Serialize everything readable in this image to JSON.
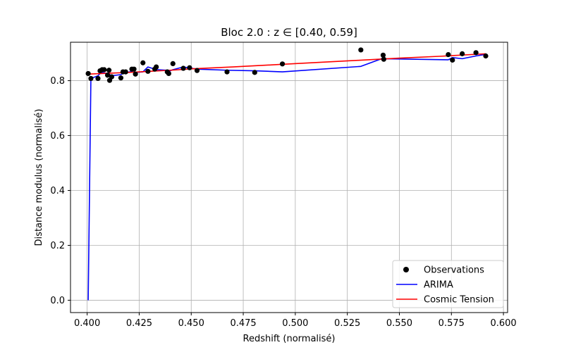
{
  "chart_data": {
    "type": "line",
    "title": "Bloc 2.0 : z ∈ [0.40, 0.59]",
    "xlabel": "Redshift (normalisé)",
    "ylabel": "Distance modulus (normalisé)",
    "xlim": [
      0.392,
      0.602
    ],
    "ylim": [
      -0.045,
      0.94
    ],
    "xticks": [
      0.4,
      0.425,
      0.45,
      0.475,
      0.5,
      0.525,
      0.55,
      0.575,
      0.6
    ],
    "xtick_labels": [
      "0.400",
      "0.425",
      "0.450",
      "0.475",
      "0.500",
      "0.525",
      "0.550",
      "0.575",
      "0.600"
    ],
    "yticks": [
      0.0,
      0.2,
      0.4,
      0.6,
      0.8
    ],
    "ytick_labels": [
      "0.0",
      "0.2",
      "0.4",
      "0.6",
      "0.8"
    ],
    "grid": true,
    "legend_position": "lower-right",
    "series": [
      {
        "name": "Observations",
        "kind": "scatter",
        "color": "#000000",
        "x": [
          0.4005,
          0.4018,
          0.4052,
          0.4062,
          0.4072,
          0.4082,
          0.4098,
          0.4105,
          0.4108,
          0.4118,
          0.4162,
          0.4172,
          0.4185,
          0.4215,
          0.4225,
          0.4232,
          0.4268,
          0.4292,
          0.4325,
          0.4332,
          0.4385,
          0.4392,
          0.4412,
          0.4462,
          0.4492,
          0.4528,
          0.4672,
          0.4805,
          0.4938,
          0.5315,
          0.5422,
          0.5425,
          0.5735,
          0.5755,
          0.5802,
          0.5868,
          0.5915
        ],
        "y": [
          0.826,
          0.808,
          0.808,
          0.836,
          0.84,
          0.84,
          0.82,
          0.838,
          0.801,
          0.814,
          0.81,
          0.832,
          0.832,
          0.842,
          0.842,
          0.824,
          0.865,
          0.834,
          0.842,
          0.85,
          0.832,
          0.826,
          0.862,
          0.845,
          0.847,
          0.837,
          0.832,
          0.83,
          0.861,
          0.912,
          0.893,
          0.878,
          0.895,
          0.875,
          0.898,
          0.902,
          0.89
        ]
      },
      {
        "name": "ARIMA",
        "kind": "line",
        "color": "#0000ff",
        "x": [
          0.4005,
          0.4018,
          0.4052,
          0.4062,
          0.4072,
          0.4082,
          0.4098,
          0.4105,
          0.4108,
          0.4118,
          0.4162,
          0.4172,
          0.4185,
          0.4215,
          0.4225,
          0.4232,
          0.4268,
          0.4292,
          0.4325,
          0.4332,
          0.4385,
          0.4392,
          0.4412,
          0.4462,
          0.4492,
          0.4528,
          0.4672,
          0.4805,
          0.4938,
          0.5315,
          0.5422,
          0.5425,
          0.5735,
          0.5755,
          0.5802,
          0.5868,
          0.5915
        ],
        "y": [
          0.0,
          0.808,
          0.818,
          0.826,
          0.83,
          0.828,
          0.826,
          0.83,
          0.822,
          0.818,
          0.822,
          0.826,
          0.828,
          0.834,
          0.836,
          0.83,
          0.832,
          0.85,
          0.842,
          0.84,
          0.838,
          0.834,
          0.84,
          0.85,
          0.846,
          0.842,
          0.838,
          0.836,
          0.832,
          0.852,
          0.882,
          0.88,
          0.876,
          0.884,
          0.88,
          0.89,
          0.896
        ]
      },
      {
        "name": "Cosmic Tension",
        "kind": "line",
        "color": "#ff0000",
        "x": [
          0.4005,
          0.41,
          0.42,
          0.43,
          0.44,
          0.45,
          0.47,
          0.49,
          0.51,
          0.53,
          0.55,
          0.57,
          0.5915
        ],
        "y": [
          0.824,
          0.827,
          0.83,
          0.834,
          0.838,
          0.843,
          0.85,
          0.858,
          0.866,
          0.874,
          0.882,
          0.889,
          0.898
        ]
      }
    ]
  }
}
